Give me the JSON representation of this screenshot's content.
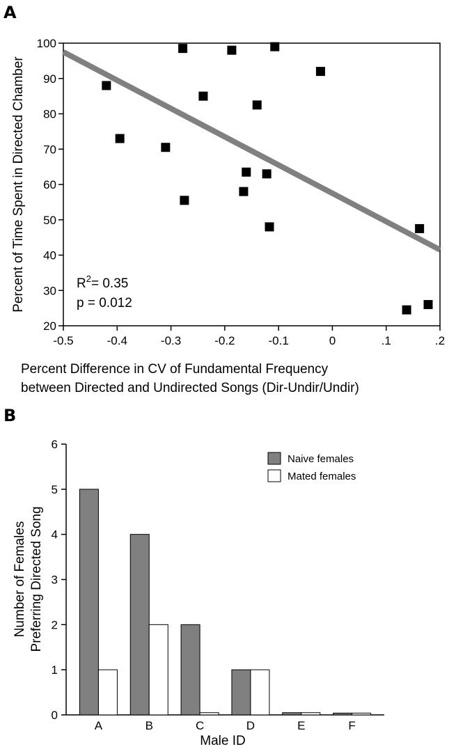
{
  "chart_data": [
    {
      "panel": "A",
      "type": "scatter",
      "xlabel_line1": "Percent Difference in CV of Fundamental Frequency",
      "xlabel_line2": "between Directed and Undirected Songs (Dir-Undir/Undir)",
      "ylabel": "Percent of Time Spent in Directed Chamber",
      "xlim": [
        -0.5,
        0.2
      ],
      "ylim": [
        20,
        100
      ],
      "x_ticks": [
        {
          "value": -0.5,
          "label": "-0.5"
        },
        {
          "value": -0.4,
          "label": "-0.4"
        },
        {
          "value": -0.3,
          "label": "-0.3"
        },
        {
          "value": -0.2,
          "label": "-0.2"
        },
        {
          "value": -0.1,
          "label": "-0.1"
        },
        {
          "value": 0,
          "label": "0"
        },
        {
          "value": 0.1,
          "label": ".1"
        },
        {
          "value": 0.2,
          "label": ".2"
        }
      ],
      "y_ticks": [
        {
          "value": 20,
          "label": "20"
        },
        {
          "value": 30,
          "label": "30"
        },
        {
          "value": 40,
          "label": "40"
        },
        {
          "value": 50,
          "label": "50"
        },
        {
          "value": 60,
          "label": "60"
        },
        {
          "value": 70,
          "label": "70"
        },
        {
          "value": 80,
          "label": "80"
        },
        {
          "value": 90,
          "label": "90"
        },
        {
          "value": 100,
          "label": "100"
        }
      ],
      "points": [
        {
          "x": -0.42,
          "y": 88
        },
        {
          "x": -0.395,
          "y": 73
        },
        {
          "x": -0.31,
          "y": 70.5
        },
        {
          "x": -0.278,
          "y": 98.5
        },
        {
          "x": -0.275,
          "y": 55.5
        },
        {
          "x": -0.24,
          "y": 85
        },
        {
          "x": -0.187,
          "y": 98
        },
        {
          "x": -0.165,
          "y": 58
        },
        {
          "x": -0.16,
          "y": 63.5
        },
        {
          "x": -0.14,
          "y": 82.5
        },
        {
          "x": -0.122,
          "y": 63
        },
        {
          "x": -0.117,
          "y": 48
        },
        {
          "x": -0.107,
          "y": 99
        },
        {
          "x": -0.022,
          "y": 92
        },
        {
          "x": 0.138,
          "y": 24.5
        },
        {
          "x": 0.162,
          "y": 47.5
        },
        {
          "x": 0.178,
          "y": 26
        }
      ],
      "regression_line": {
        "x1": -0.5,
        "y1": 97.5,
        "x2": 0.2,
        "y2": 41.5,
        "color": "#808080"
      },
      "annotation": {
        "r2_prefix": "R",
        "r2_sup": "2",
        "r2_value": "= 0.35",
        "p": "p = 0.012"
      },
      "marker_color": "#000000"
    },
    {
      "panel": "B",
      "type": "bar",
      "xlabel": "Male ID",
      "ylabel_line1": "Number of Females",
      "ylabel_line2": "Preferring Directed Song",
      "categories": [
        "A",
        "B",
        "C",
        "D",
        "E",
        "F"
      ],
      "ylim": [
        0,
        6
      ],
      "y_ticks": [
        {
          "value": 0,
          "label": "0"
        },
        {
          "value": 1,
          "label": "1"
        },
        {
          "value": 2,
          "label": "2"
        },
        {
          "value": 3,
          "label": "3"
        },
        {
          "value": 4,
          "label": "4"
        },
        {
          "value": 5,
          "label": "5"
        },
        {
          "value": 6,
          "label": "6"
        }
      ],
      "series": [
        {
          "name": "Naive females",
          "values": [
            5,
            4,
            2,
            1,
            0.05,
            0.04
          ],
          "color": "#808080"
        },
        {
          "name": "Mated females",
          "values": [
            1,
            2,
            0.05,
            1,
            0.05,
            0.04
          ],
          "color": "#ffffff"
        }
      ],
      "legend_position": "top-right"
    }
  ]
}
